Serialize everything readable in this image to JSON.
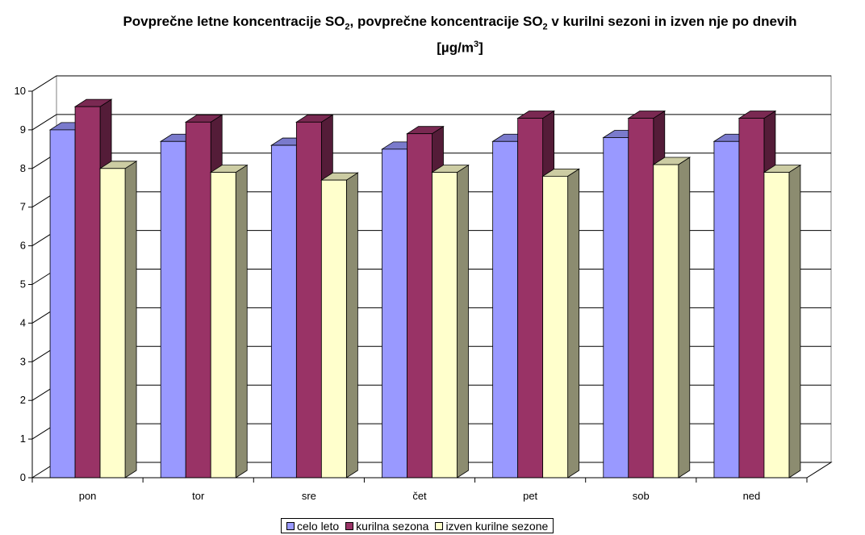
{
  "chart_data": {
    "type": "bar",
    "title_parts": {
      "part1": "Povprečne letne koncentracije SO",
      "sub1": "2",
      "part2": ", povprečne koncentracije SO",
      "sub2": "2",
      "part3": " v kurilni sezoni in izven nje po dnevih",
      "unit_open": "[µg/m",
      "unit_sup": "3",
      "unit_close": "]"
    },
    "categories": [
      "pon",
      "tor",
      "sre",
      "čet",
      "pet",
      "sob",
      "ned"
    ],
    "series": [
      {
        "name": "celo leto",
        "color": "#9999ff",
        "values": [
          9.0,
          8.7,
          8.6,
          8.5,
          8.7,
          8.8,
          8.7
        ]
      },
      {
        "name": "kurilna sezona",
        "color": "#993366",
        "values": [
          9.6,
          9.2,
          9.2,
          8.9,
          9.3,
          9.3,
          9.3
        ]
      },
      {
        "name": "izven kurilne sezone",
        "color": "#ffffcc",
        "values": [
          8.0,
          7.9,
          7.7,
          7.9,
          7.8,
          8.1,
          7.9
        ]
      }
    ],
    "y_ticks": [
      "0",
      "1",
      "2",
      "3",
      "4",
      "5",
      "6",
      "7",
      "8",
      "9",
      "10"
    ],
    "ylim": [
      0,
      10
    ],
    "grid": true,
    "legend_position": "bottom"
  }
}
